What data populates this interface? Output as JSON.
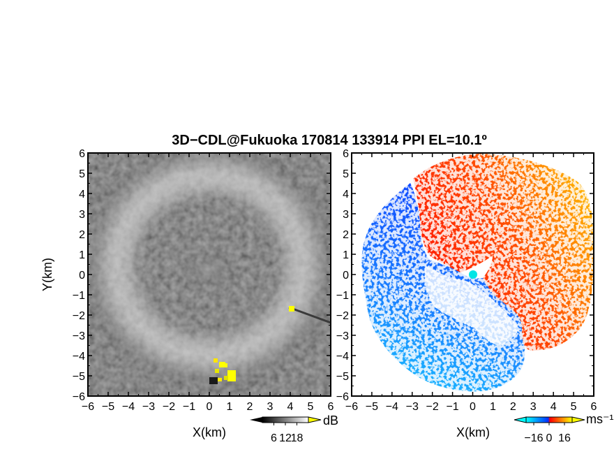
{
  "chart_data": {
    "title": "3D−CDL@Fukuoka 170814 133914 PPI EL=10.1º",
    "panels": [
      {
        "type": "heatmap",
        "name": "reflectivity",
        "xlabel": "X(km)",
        "ylabel": "Y(km)",
        "xlim": [
          -6,
          6
        ],
        "ylim": [
          -6,
          6
        ],
        "x_ticks": [
          "−6",
          "−5",
          "−4",
          "−3",
          "−2",
          "−1",
          "0",
          "1",
          "2",
          "3",
          "4",
          "5",
          "6"
        ],
        "y_ticks": [
          "6",
          "5",
          "4",
          "3",
          "2",
          "1",
          "0",
          "−1",
          "−2",
          "−3",
          "−4",
          "−5",
          "−6"
        ],
        "colorbar": {
          "unit": "dB",
          "ticks": [
            "6",
            "12",
            "18"
          ],
          "range": [
            0,
            24
          ],
          "colors": [
            "#000000",
            "#ffffff"
          ],
          "over_color": "#ffff00"
        },
        "features": [
          {
            "label": "ring",
            "center": [
              0,
              0
            ],
            "inner_radius_km": 3.0,
            "outer_radius_km": 4.6
          },
          {
            "label": "saturated",
            "color": "#ffff00",
            "points_km": [
              [
                0.55,
                -4.4
              ],
              [
                1.15,
                -5.0
              ],
              [
                0.7,
                -5.1
              ],
              [
                4.1,
                -1.7
              ]
            ]
          }
        ]
      },
      {
        "type": "heatmap",
        "name": "doppler velocity",
        "xlabel": "X(km)",
        "ylabel": "",
        "xlim": [
          -6,
          6
        ],
        "ylim": [
          -6,
          6
        ],
        "x_ticks": [
          "−6",
          "−5",
          "−4",
          "−3",
          "−2",
          "−1",
          "0",
          "1",
          "2",
          "3",
          "4",
          "5",
          "6"
        ],
        "y_ticks": [
          "6",
          "5",
          "4",
          "3",
          "2",
          "1",
          "0",
          "−1",
          "−2",
          "−3",
          "−4",
          "−5",
          "−6"
        ],
        "colorbar": {
          "unit": "ms⁻¹",
          "ticks": [
            "−16",
            "0",
            "16"
          ],
          "range": [
            -24,
            24
          ],
          "colors": [
            "#00ffff",
            "#0030ff",
            "#ff0000",
            "#ffff00"
          ]
        },
        "features": [
          {
            "label": "negative",
            "color": "#1060ff",
            "region": "west"
          },
          {
            "label": "positive",
            "color": "#ff5000",
            "region": "east"
          },
          {
            "label": "radar site",
            "color": "#00e5e5",
            "point_km": [
              0,
              0
            ]
          }
        ]
      }
    ]
  }
}
